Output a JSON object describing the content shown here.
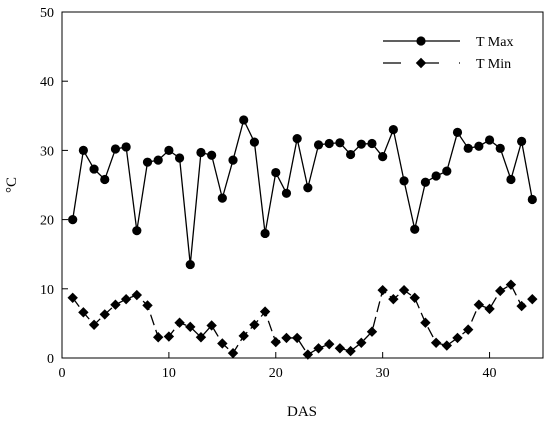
{
  "chart_data": {
    "type": "line",
    "xlabel": "DAS",
    "ylabel": "°C",
    "xlim": [
      0,
      45
    ],
    "ylim": [
      0,
      50
    ],
    "xticks": [
      0,
      10,
      20,
      30,
      40
    ],
    "yticks": [
      0,
      10,
      20,
      30,
      40,
      50
    ],
    "grid": false,
    "legend_position": "top-right",
    "x": [
      1,
      2,
      3,
      4,
      5,
      6,
      7,
      8,
      9,
      10,
      11,
      12,
      13,
      14,
      15,
      16,
      17,
      18,
      19,
      20,
      21,
      22,
      23,
      24,
      25,
      26,
      27,
      28,
      29,
      30,
      31,
      32,
      33,
      34,
      35,
      36,
      37,
      38,
      39,
      40,
      41,
      42,
      43,
      44
    ],
    "series": [
      {
        "name": "T Max",
        "marker": "circle",
        "line": "solid",
        "color": "#000000",
        "values": [
          20.0,
          30.0,
          27.3,
          25.8,
          30.2,
          30.5,
          18.4,
          28.3,
          28.6,
          30.0,
          28.9,
          13.5,
          29.7,
          29.3,
          23.1,
          28.6,
          34.4,
          31.2,
          18.0,
          26.8,
          23.8,
          31.7,
          24.6,
          30.8,
          31.0,
          31.1,
          29.4,
          30.9,
          31.0,
          29.1,
          33.0,
          25.6,
          18.6,
          25.4,
          26.3,
          27.0,
          32.6,
          30.3,
          30.6,
          31.5,
          30.3,
          25.8,
          31.3,
          22.9
        ]
      },
      {
        "name": "T Min",
        "marker": "diamond",
        "line": "dashed",
        "color": "#000000",
        "values": [
          8.7,
          6.6,
          4.8,
          6.3,
          7.7,
          8.5,
          9.1,
          7.6,
          3.0,
          3.1,
          5.1,
          4.5,
          3.0,
          4.7,
          2.1,
          0.7,
          3.2,
          4.8,
          6.7,
          2.3,
          2.9,
          2.9,
          0.5,
          1.4,
          2.0,
          1.4,
          1.0,
          2.2,
          3.8,
          9.8,
          8.5,
          9.8,
          8.7,
          5.1,
          2.2,
          1.8,
          2.9,
          4.1,
          7.7,
          7.1,
          9.7,
          10.6,
          7.5,
          8.5
        ]
      }
    ]
  }
}
